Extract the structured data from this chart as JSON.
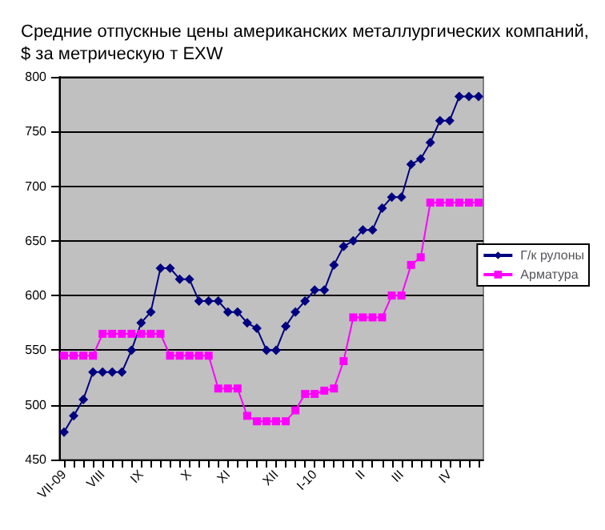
{
  "chart_data": {
    "type": "line",
    "title": "Средние отпускные цены американских металлургических компаний,\n$ за метрическую т EXW",
    "categories": [
      "VII-09",
      null,
      null,
      null,
      "VIII",
      null,
      null,
      null,
      "IX",
      null,
      null,
      null,
      null,
      "X",
      null,
      null,
      null,
      "XI",
      null,
      null,
      null,
      null,
      "XII",
      null,
      null,
      null,
      "I-10",
      null,
      null,
      null,
      null,
      "II",
      null,
      null,
      null,
      "III",
      null,
      null,
      null,
      null,
      "IV",
      null,
      null,
      null
    ],
    "series": [
      {
        "name": "Г/к рулоны",
        "color": "#000080",
        "marker": "diamond",
        "values": [
          475,
          490,
          505,
          530,
          530,
          530,
          530,
          550,
          575,
          585,
          625,
          625,
          615,
          615,
          595,
          595,
          595,
          585,
          585,
          575,
          570,
          550,
          550,
          572,
          585,
          595,
          605,
          605,
          628,
          645,
          650,
          660,
          660,
          680,
          690,
          690,
          720,
          725,
          740,
          760,
          760,
          782,
          782,
          782
        ]
      },
      {
        "name": "Арматура",
        "color": "#ff00ff",
        "marker": "square",
        "values": [
          545,
          545,
          545,
          545,
          565,
          565,
          565,
          565,
          565,
          565,
          565,
          545,
          545,
          545,
          545,
          545,
          515,
          515,
          515,
          490,
          485,
          485,
          485,
          485,
          495,
          510,
          510,
          513,
          515,
          540,
          580,
          580,
          580,
          580,
          600,
          600,
          628,
          635,
          685,
          685,
          685,
          685,
          685,
          685
        ]
      }
    ],
    "ylim": [
      450,
      800
    ],
    "yticks": [
      450,
      500,
      550,
      600,
      650,
      700,
      750,
      800
    ],
    "grid": "y",
    "legend": "right"
  }
}
